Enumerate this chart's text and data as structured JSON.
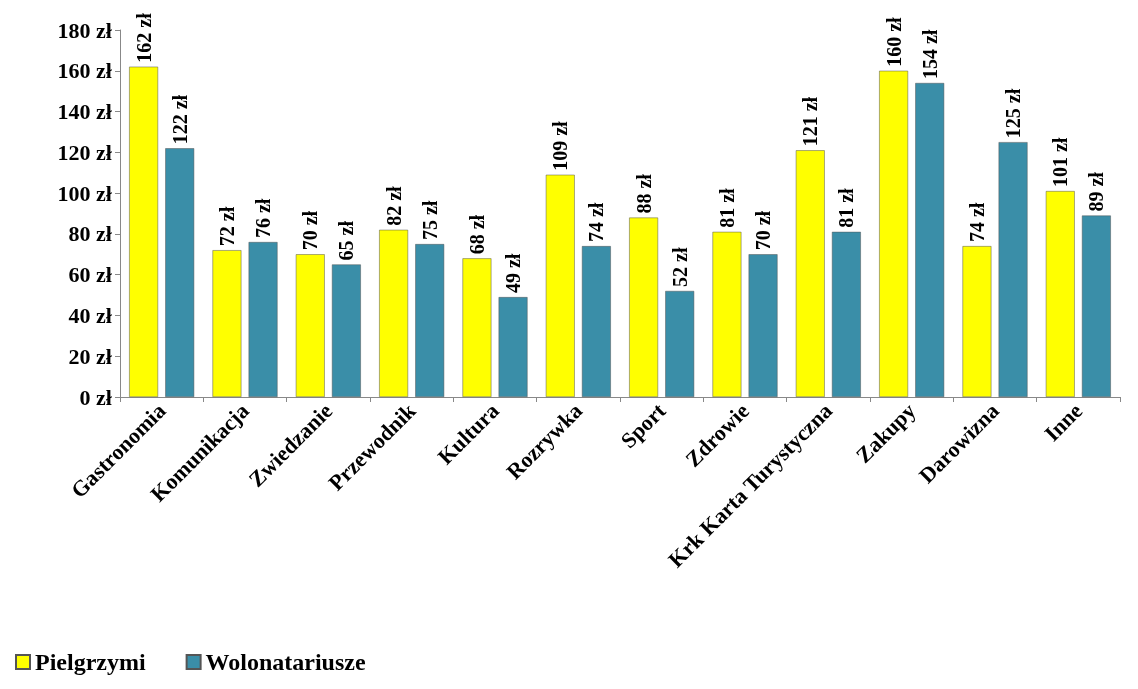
{
  "chart_data": {
    "type": "bar",
    "categories": [
      "Gastronomia",
      "Komunikacja",
      "Zwiedzanie",
      "Przewodnik",
      "Kultura",
      "Rozrywka",
      "Sport",
      "Zdrowie",
      "Krk Karta Turystyczna",
      "Zakupy",
      "Darowizna",
      "Inne"
    ],
    "series": [
      {
        "name": "Pielgrzymi",
        "color": "#ffff00",
        "values": [
          162,
          72,
          70,
          82,
          68,
          109,
          88,
          81,
          121,
          160,
          74,
          101
        ],
        "value_labels": [
          "162 zł",
          "72 zł",
          "70 zł",
          "82 zł",
          "68 zł",
          "109 zł",
          "88 zł",
          "81 zł",
          "121 zł",
          "160 zł",
          "74 zł",
          "101 zł"
        ]
      },
      {
        "name": "Wolonatariusze",
        "color": "#3a8ea8",
        "values": [
          122,
          76,
          65,
          75,
          49,
          74,
          52,
          70,
          81,
          154,
          125,
          89
        ],
        "value_labels": [
          "122 zł",
          "76 zł",
          "65 zł",
          "75 zł",
          "49 zł",
          "74 zł",
          "52 zł",
          "70 zł",
          "81 zł",
          "154 zł",
          "125 zł",
          "89 zł"
        ]
      }
    ],
    "ylim": [
      0,
      180
    ],
    "yticks": [
      {
        "value": 0,
        "label": "0 zł"
      },
      {
        "value": 20,
        "label": "20 zł"
      },
      {
        "value": 40,
        "label": "40 zł"
      },
      {
        "value": 60,
        "label": "60 zł"
      },
      {
        "value": 80,
        "label": "80 zł"
      },
      {
        "value": 100,
        "label": "100 zł"
      },
      {
        "value": 120,
        "label": "120 zł"
      },
      {
        "value": 140,
        "label": "140 zł"
      },
      {
        "value": 160,
        "label": "160 zł"
      },
      {
        "value": 180,
        "label": "180 zł"
      }
    ],
    "grid": false,
    "legend": "bottom left"
  }
}
